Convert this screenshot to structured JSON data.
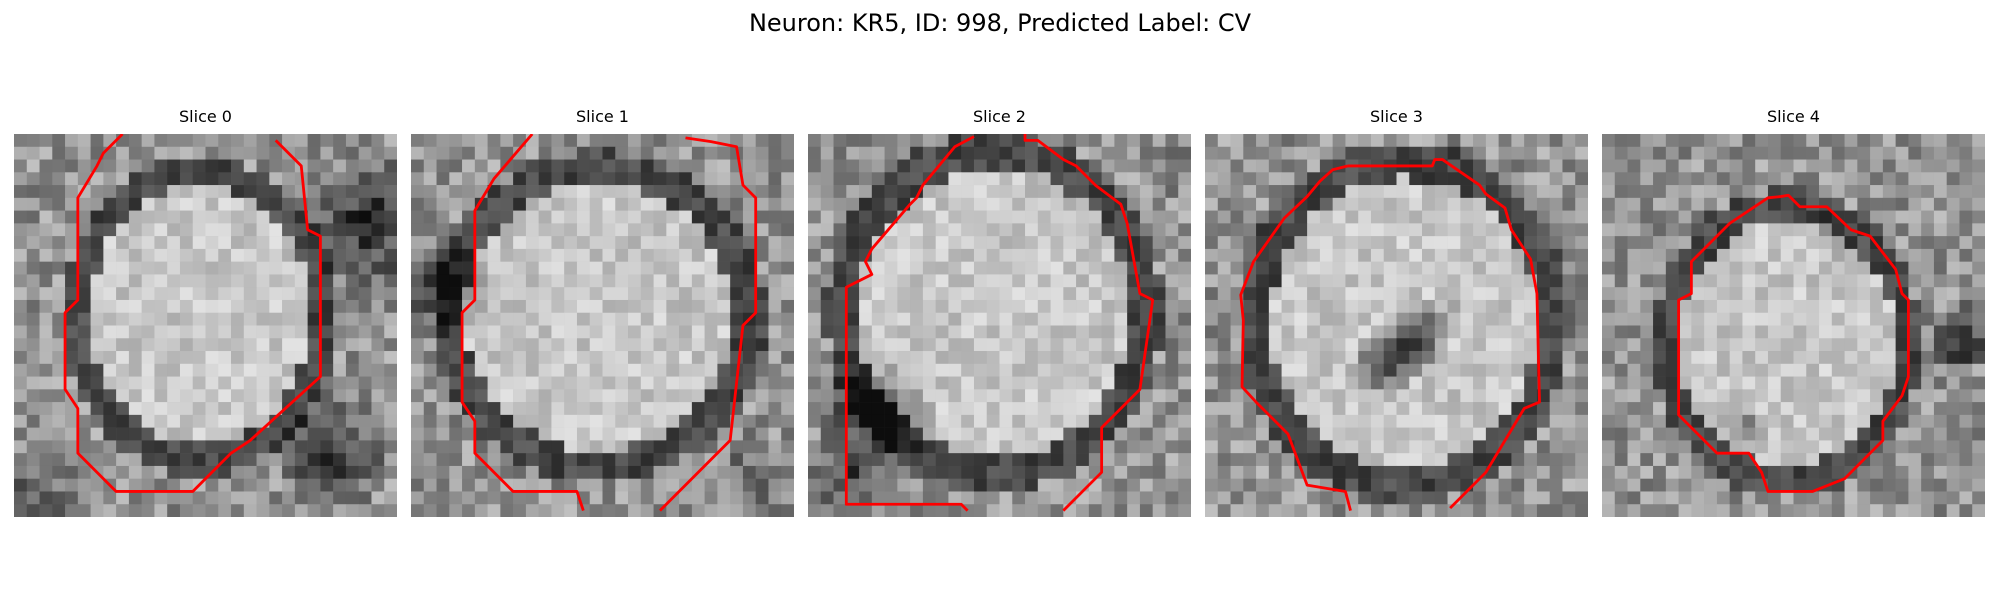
{
  "figure": {
    "title": "Neuron: KR5, ID: 998, Predicted Label: CV"
  },
  "colors": {
    "contour": "#ff0000",
    "background": "#ffffff"
  },
  "slices": [
    {
      "title": "Slice 0"
    },
    {
      "title": "Slice 1"
    },
    {
      "title": "Slice 2"
    },
    {
      "title": "Slice 3"
    },
    {
      "title": "Slice 4"
    }
  ]
}
